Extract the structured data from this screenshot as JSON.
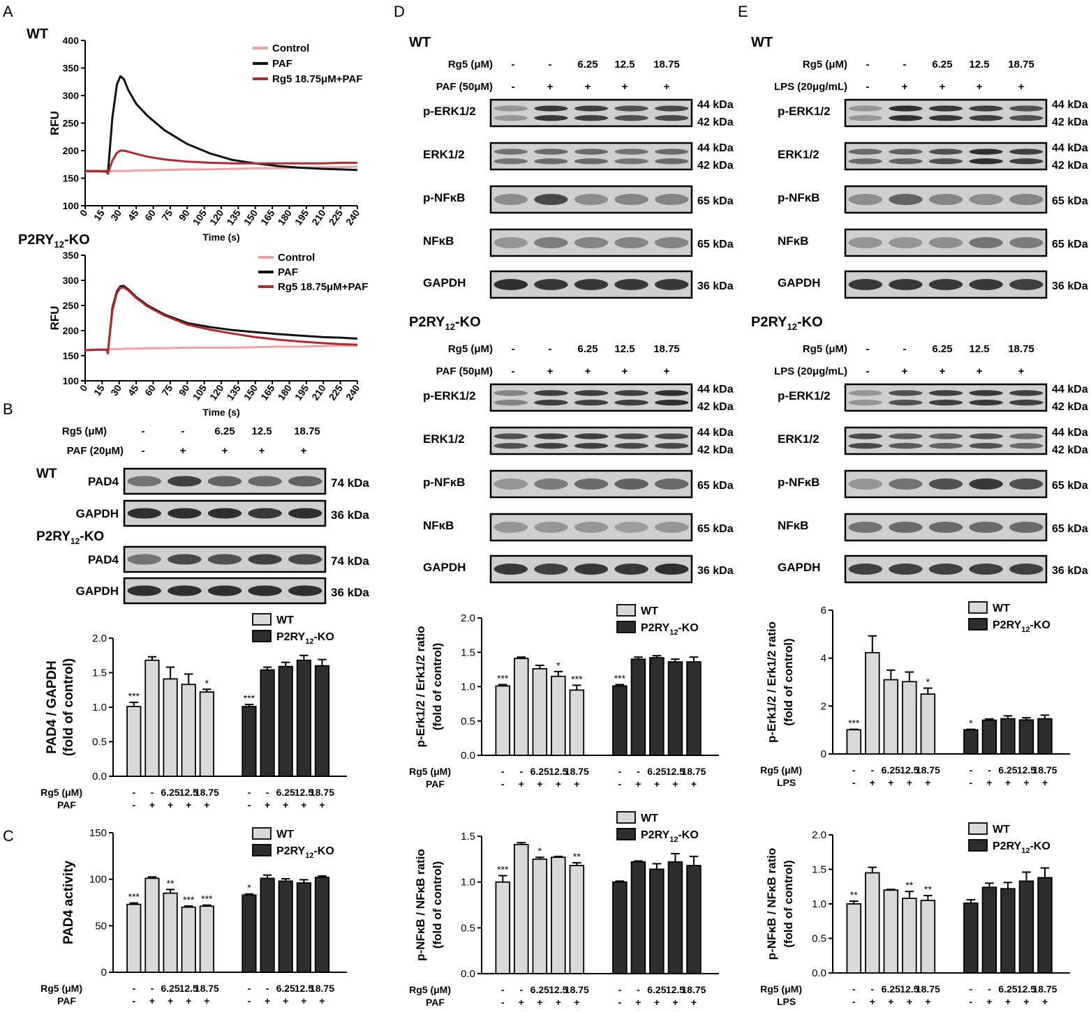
{
  "colors": {
    "control": "#f0a0a4",
    "paf": "#111111",
    "rg5": "#b02a2e",
    "wt_bar": "#d9d9d9",
    "ko_bar": "#2e2e2e"
  },
  "panel_letters": {
    "A": "A",
    "B": "B",
    "C": "C",
    "D": "D",
    "E": "E"
  },
  "conditions": {
    "rg5_values": [
      "-",
      "-",
      "6.25",
      "12.5",
      "18.75"
    ],
    "stim_values": [
      "-",
      "+",
      "+",
      "+",
      "+"
    ]
  },
  "panel_a": {
    "wt_label": "WT",
    "ko_label_main": "P2RY",
    "ko_label_sub": "12",
    "ko_label_tail": "-KO",
    "legend": [
      "Control",
      "PAF",
      "Rg5 18.75μM+PAF"
    ],
    "ylabel": "RFU",
    "xlabel": "Time (s)"
  },
  "panel_b": {
    "rg5_label": "Rg5 (μM)",
    "stim_label": "PAF (20μM)",
    "wt_label": "WT",
    "rows": [
      {
        "name": "PAD4",
        "kda": "74 kDa",
        "group": "wt"
      },
      {
        "name": "GAPDH",
        "kda": "36 kDa",
        "group": "wt"
      },
      {
        "name": "PAD4",
        "kda": "74 kDa",
        "group": "ko"
      },
      {
        "name": "GAPDH",
        "kda": "36 kDa",
        "group": "ko"
      }
    ],
    "x_rg5": "Rg5 (μM)",
    "x_stim": "PAF"
  },
  "panel_c": {
    "x_rg5": "Rg5 (μM)",
    "x_stim": "PAF"
  },
  "panel_d": {
    "wt_label": "WT",
    "rg5_label": "Rg5 (μM)",
    "stim_label": "PAF (50μM)",
    "rows": [
      {
        "name": "p-ERK1/2",
        "kda": [
          "44 kDa",
          "42 kDa"
        ]
      },
      {
        "name": "ERK1/2",
        "kda": [
          "44 kDa",
          "42 kDa"
        ]
      },
      {
        "name": "p-NFκB",
        "kda": [
          "65 kDa"
        ]
      },
      {
        "name": "NFκB",
        "kda": [
          "65 kDa"
        ]
      },
      {
        "name": "GAPDH",
        "kda": [
          "36 kDa"
        ]
      }
    ],
    "x_rg5": "Rg5 (μM)",
    "x_stim": "PAF"
  },
  "panel_e": {
    "wt_label": "WT",
    "rg5_label": "Rg5 (μM)",
    "stim_label": "LPS (20μg/mL)",
    "rows": [
      {
        "name": "p-ERK1/2",
        "kda": [
          "44 kDa",
          "42 kDa"
        ]
      },
      {
        "name": "ERK1/2",
        "kda": [
          "44 kDa",
          "42 kDa"
        ]
      },
      {
        "name": "p-NFκB",
        "kda": [
          "65 kDa"
        ]
      },
      {
        "name": "NFκB",
        "kda": [
          "65 kDa"
        ]
      },
      {
        "name": "GAPDH",
        "kda": [
          "36 kDa"
        ]
      }
    ],
    "x_rg5": "Rg5 (μM)",
    "x_stim": "LPS"
  },
  "chart_data": [
    {
      "id": "A-WT",
      "type": "line",
      "title": "WT",
      "xlabel": "Time (s)",
      "ylabel": "RFU",
      "xlim": [
        0,
        240
      ],
      "ylim": [
        100,
        400
      ],
      "xticks": [
        0,
        15,
        30,
        45,
        60,
        75,
        90,
        105,
        120,
        135,
        150,
        165,
        180,
        195,
        210,
        225,
        240
      ],
      "yticks": [
        100,
        150,
        200,
        250,
        300,
        350,
        400
      ],
      "x": [
        0,
        10,
        19,
        20,
        24,
        28,
        31,
        34,
        38,
        45,
        55,
        70,
        90,
        110,
        130,
        150,
        170,
        190,
        210,
        225,
        240
      ],
      "series": [
        {
          "name": "Control",
          "values": [
            162,
            162,
            162,
            162,
            163,
            163,
            163,
            163,
            163,
            164,
            164,
            165,
            166,
            166,
            167,
            168,
            168,
            169,
            170,
            170,
            171
          ]
        },
        {
          "name": "PAF",
          "values": [
            163,
            163,
            162,
            158,
            260,
            320,
            335,
            330,
            310,
            285,
            263,
            237,
            212,
            195,
            183,
            177,
            172,
            169,
            167,
            166,
            165
          ]
        },
        {
          "name": "Rg5 18.75μM+PAF",
          "values": [
            163,
            163,
            163,
            158,
            182,
            196,
            200,
            200,
            198,
            194,
            189,
            184,
            180,
            178,
            177,
            177,
            177,
            177,
            177,
            178,
            178
          ]
        }
      ],
      "legend": [
        "Control",
        "PAF",
        "Rg5 18.75μM+PAF"
      ]
    },
    {
      "id": "A-KO",
      "type": "line",
      "title": "P2RY12-KO",
      "xlabel": "Time (s)",
      "ylabel": "RFU",
      "xlim": [
        0,
        240
      ],
      "ylim": [
        100,
        350
      ],
      "xticks": [
        0,
        15,
        30,
        45,
        60,
        75,
        90,
        105,
        120,
        135,
        150,
        165,
        180,
        195,
        210,
        225,
        240
      ],
      "yticks": [
        100,
        150,
        200,
        250,
        300,
        350
      ],
      "x": [
        0,
        10,
        19,
        20,
        24,
        28,
        31,
        34,
        38,
        45,
        55,
        70,
        90,
        110,
        130,
        150,
        170,
        190,
        210,
        225,
        240
      ],
      "series": [
        {
          "name": "Control",
          "values": [
            161,
            162,
            162,
            162,
            163,
            163,
            163,
            164,
            164,
            164,
            165,
            165,
            166,
            166,
            166,
            167,
            168,
            168,
            169,
            170,
            170
          ]
        },
        {
          "name": "PAF",
          "values": [
            161,
            162,
            162,
            155,
            245,
            278,
            288,
            289,
            282,
            267,
            250,
            232,
            215,
            207,
            201,
            197,
            193,
            190,
            187,
            186,
            184
          ]
        },
        {
          "name": "Rg5 18.75μM+PAF",
          "values": [
            161,
            162,
            162,
            155,
            240,
            275,
            285,
            286,
            280,
            265,
            248,
            230,
            212,
            202,
            194,
            187,
            182,
            178,
            175,
            173,
            172
          ]
        }
      ],
      "legend": [
        "Control",
        "PAF",
        "Rg5 18.75μM+PAF"
      ]
    },
    {
      "id": "B",
      "type": "bar",
      "ylabel": "PAD4 / GAPDH",
      "ylabel2": "(fold of control)",
      "ylim": [
        0,
        2.0
      ],
      "yticks": [
        0.0,
        0.5,
        1.0,
        1.5,
        2.0
      ],
      "categories": [
        "-",
        "-",
        "6.25",
        "12.5",
        "18.75"
      ],
      "series": [
        {
          "name": "WT",
          "values": [
            1.01,
            1.68,
            1.41,
            1.33,
            1.22
          ],
          "errors": [
            0.06,
            0.05,
            0.17,
            0.15,
            0.04
          ],
          "sig": [
            "***",
            "",
            "",
            "",
            "*"
          ]
        },
        {
          "name": "P2RY12-KO",
          "values": [
            1.01,
            1.54,
            1.59,
            1.68,
            1.6
          ],
          "errors": [
            0.03,
            0.04,
            0.06,
            0.07,
            0.09
          ],
          "sig": [
            "***",
            "",
            "",
            "",
            ""
          ]
        }
      ],
      "legend": [
        "WT",
        "P2RY12-KO"
      ]
    },
    {
      "id": "C",
      "type": "bar",
      "ylabel": "PAD4 activity",
      "ylim": [
        0,
        150
      ],
      "yticks": [
        0,
        50,
        100,
        150
      ],
      "categories": [
        "-",
        "-",
        "6.25",
        "12.5",
        "18.75"
      ],
      "series": [
        {
          "name": "WT",
          "values": [
            73,
            101,
            85,
            70,
            71
          ],
          "errors": [
            1.5,
            1.5,
            4,
            1.2,
            1.2
          ],
          "sig": [
            "***",
            "",
            "**",
            "***",
            "***"
          ]
        },
        {
          "name": "P2RY12-KO",
          "values": [
            83,
            101,
            98,
            96,
            102
          ],
          "errors": [
            1.2,
            3.5,
            2.5,
            3.5,
            1.5
          ],
          "sig": [
            "*",
            "",
            "",
            "",
            ""
          ]
        }
      ],
      "legend": [
        "WT",
        "P2RY12-KO"
      ]
    },
    {
      "id": "D1",
      "type": "bar",
      "ylabel": "p-Erk1/2 / Erk1/2 ratio",
      "ylabel2": "(fold of control)",
      "ylim": [
        0,
        2.0
      ],
      "yticks": [
        0.0,
        0.5,
        1.0,
        1.5,
        2.0
      ],
      "categories": [
        "-",
        "-",
        "6.25",
        "12.5",
        "18.75"
      ],
      "series": [
        {
          "name": "WT",
          "values": [
            1.01,
            1.41,
            1.26,
            1.15,
            0.95
          ],
          "errors": [
            0.02,
            0.02,
            0.05,
            0.07,
            0.07
          ],
          "sig": [
            "***",
            "",
            "",
            "*",
            "***"
          ]
        },
        {
          "name": "P2RY12-KO",
          "values": [
            1.01,
            1.4,
            1.42,
            1.36,
            1.36
          ],
          "errors": [
            0.02,
            0.03,
            0.03,
            0.04,
            0.07
          ],
          "sig": [
            "***",
            "",
            "",
            "",
            ""
          ]
        }
      ],
      "legend": [
        "WT",
        "P2RY12-KO"
      ]
    },
    {
      "id": "D2",
      "type": "bar",
      "ylabel": "p-NFκB / NFκB ratio",
      "ylabel2": "(fold of control)",
      "ylim": [
        0,
        1.5
      ],
      "yticks": [
        0.0,
        0.5,
        1.0,
        1.5
      ],
      "categories": [
        "-",
        "-",
        "6.25",
        "12.5",
        "18.75"
      ],
      "series": [
        {
          "name": "WT",
          "values": [
            1.0,
            1.41,
            1.25,
            1.27,
            1.18
          ],
          "errors": [
            0.07,
            0.02,
            0.02,
            0.01,
            0.03
          ],
          "sig": [
            "***",
            "",
            "*",
            "",
            "**"
          ]
        },
        {
          "name": "P2RY12-KO",
          "values": [
            1.0,
            1.22,
            1.14,
            1.22,
            1.18
          ],
          "errors": [
            0.01,
            0.01,
            0.06,
            0.09,
            0.1
          ],
          "sig": [
            "",
            "",
            "",
            "",
            ""
          ]
        }
      ],
      "legend": [
        "WT",
        "P2RY12-KO"
      ]
    },
    {
      "id": "E1",
      "type": "bar",
      "ylabel": "p-Erk1/2 / Erk1/2 ratio",
      "ylabel2": "(fold of control)",
      "ylim": [
        0,
        6
      ],
      "yticks": [
        0,
        2,
        4,
        6
      ],
      "categories": [
        "-",
        "-",
        "6.25",
        "12.5",
        "18.75"
      ],
      "series": [
        {
          "name": "WT",
          "values": [
            1.01,
            4.23,
            3.1,
            3.02,
            2.5
          ],
          "errors": [
            0.02,
            0.7,
            0.4,
            0.4,
            0.25
          ],
          "sig": [
            "***",
            "",
            "",
            "",
            "*"
          ]
        },
        {
          "name": "P2RY12-KO",
          "values": [
            1.01,
            1.41,
            1.47,
            1.42,
            1.47
          ],
          "errors": [
            0.02,
            0.05,
            0.12,
            0.09,
            0.15
          ],
          "sig": [
            "*",
            "",
            "",
            "",
            ""
          ]
        }
      ],
      "legend": [
        "WT",
        "P2RY12-KO"
      ]
    },
    {
      "id": "E2",
      "type": "bar",
      "ylabel": "p-NFκB / NFκB ratio",
      "ylabel2": "(fold of control)",
      "ylim": [
        0,
        2.0
      ],
      "yticks": [
        0.0,
        0.5,
        1.0,
        1.5,
        2.0
      ],
      "categories": [
        "-",
        "-",
        "6.25",
        "12.5",
        "18.75"
      ],
      "series": [
        {
          "name": "WT",
          "values": [
            1.0,
            1.45,
            1.2,
            1.08,
            1.05
          ],
          "errors": [
            0.04,
            0.08,
            0.01,
            0.1,
            0.07
          ],
          "sig": [
            "**",
            "",
            "",
            "**",
            "**"
          ]
        },
        {
          "name": "P2RY12-KO",
          "values": [
            1.01,
            1.24,
            1.22,
            1.33,
            1.38
          ],
          "errors": [
            0.05,
            0.06,
            0.09,
            0.13,
            0.14
          ],
          "sig": [
            "",
            "",
            "",
            "",
            ""
          ]
        }
      ],
      "legend": [
        "WT",
        "P2RY12-KO"
      ]
    }
  ]
}
